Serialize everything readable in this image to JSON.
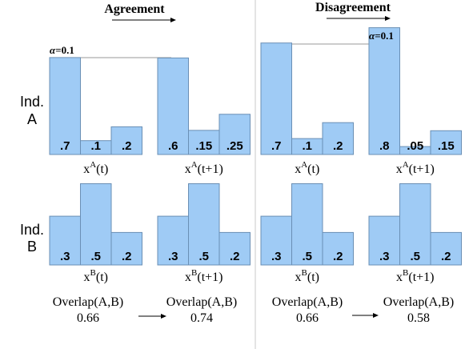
{
  "sections": [
    {
      "title": "Agreement"
    },
    {
      "title": "Disagreement"
    }
  ],
  "row_labels": {
    "a_line1": "Ind.",
    "a_line2": "A",
    "b_line1": "Ind.",
    "b_line2": "B"
  },
  "alpha_labels": [
    {
      "symbol": "α",
      "rest": "=0.1"
    },
    {
      "symbol": "α",
      "rest": "=0.1"
    }
  ],
  "chart_data": [
    {
      "type": "bar",
      "id": "agree-A-t",
      "values": [
        0.7,
        0.1,
        0.2
      ],
      "labels": [
        ".7",
        ".1",
        ".2"
      ],
      "xlabel": {
        "base": "x",
        "sup": "A",
        "arg": "(t)"
      }
    },
    {
      "type": "bar",
      "id": "agree-A-t1",
      "values": [
        0.6,
        0.15,
        0.25
      ],
      "labels": [
        ".6",
        ".15",
        ".25"
      ],
      "xlabel": {
        "base": "x",
        "sup": "A",
        "arg": "(t+1)"
      }
    },
    {
      "type": "bar",
      "id": "disagree-A-t",
      "values": [
        0.7,
        0.1,
        0.2
      ],
      "labels": [
        ".7",
        ".1",
        ".2"
      ],
      "xlabel": {
        "base": "x",
        "sup": "A",
        "arg": "(t)"
      }
    },
    {
      "type": "bar",
      "id": "disagree-A-t1",
      "values": [
        0.8,
        0.05,
        0.15
      ],
      "labels": [
        ".8",
        ".05",
        ".15"
      ],
      "xlabel": {
        "base": "x",
        "sup": "A",
        "arg": "(t+1)"
      }
    },
    {
      "type": "bar",
      "id": "agree-B-t",
      "values": [
        0.3,
        0.5,
        0.2
      ],
      "labels": [
        ".3",
        ".5",
        ".2"
      ],
      "xlabel": {
        "base": "x",
        "sup": "B",
        "arg": "(t)"
      }
    },
    {
      "type": "bar",
      "id": "agree-B-t1",
      "values": [
        0.3,
        0.5,
        0.2
      ],
      "labels": [
        ".3",
        ".5",
        ".2"
      ],
      "xlabel": {
        "base": "x",
        "sup": "B",
        "arg": "(t+1)"
      }
    },
    {
      "type": "bar",
      "id": "disagree-B-t",
      "values": [
        0.3,
        0.5,
        0.2
      ],
      "labels": [
        ".3",
        ".5",
        ".2"
      ],
      "xlabel": {
        "base": "x",
        "sup": "B",
        "arg": "(t)"
      }
    },
    {
      "type": "bar",
      "id": "disagree-B-t1",
      "values": [
        0.3,
        0.5,
        0.2
      ],
      "labels": [
        ".3",
        ".5",
        ".2"
      ],
      "xlabel": {
        "base": "x",
        "sup": "B",
        "arg": "(t+1)"
      }
    }
  ],
  "overlaps": [
    {
      "label": "Overlap(A,B)",
      "value": "0.66"
    },
    {
      "label": "Overlap(A,B)",
      "value": "0.74"
    },
    {
      "label": "Overlap(A,B)",
      "value": "0.66"
    },
    {
      "label": "Overlap(A,B)",
      "value": "0.58"
    }
  ],
  "colors": {
    "bar_fill": "#9fcbf5",
    "bar_stroke": "#6a8fb5",
    "divider": "#c8c8c8",
    "guide": "#999999"
  }
}
